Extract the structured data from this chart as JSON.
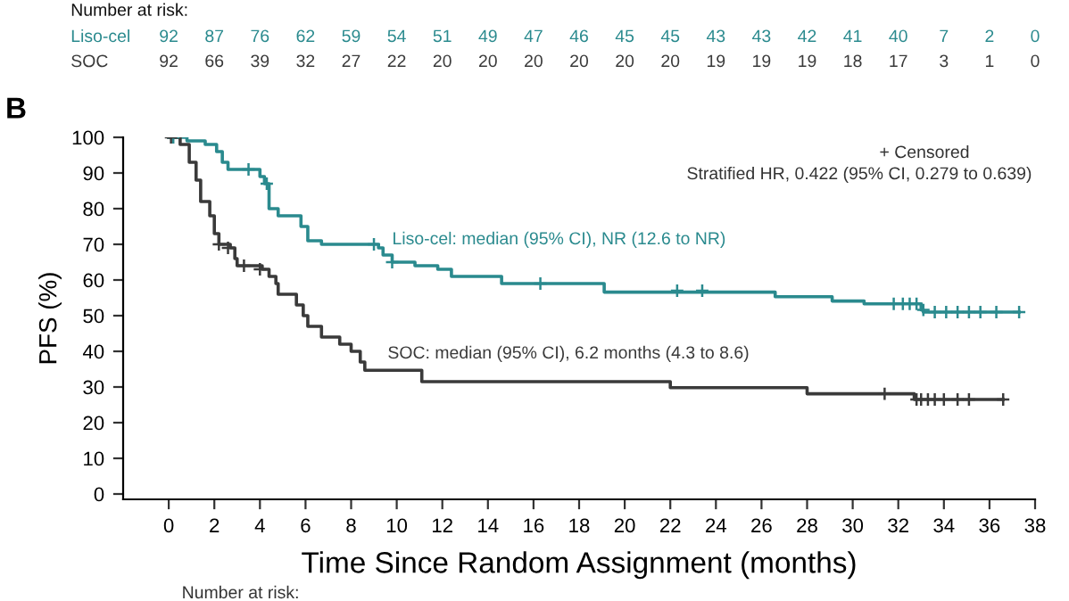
{
  "chart_data": [
    {
      "type": "heatmap",
      "title": "Number at risk:",
      "data_labels": true,
      "categories": [
        null,
        null,
        null,
        null,
        null,
        null,
        null,
        null,
        null,
        null,
        null,
        null,
        null,
        null,
        null,
        null,
        null,
        null,
        null,
        null
      ],
      "y_categories": [
        "Liso-cel",
        "SOC"
      ],
      "cells": [
        [
          92,
          87,
          76,
          62,
          59,
          54,
          51,
          49,
          47,
          46,
          45,
          45,
          43,
          43,
          42,
          41,
          40,
          7,
          2,
          0
        ],
        [
          92,
          66,
          39,
          32,
          27,
          22,
          20,
          20,
          20,
          20,
          20,
          20,
          19,
          19,
          19,
          18,
          17,
          3,
          1,
          0
        ]
      ]
    },
    {
      "type": "step",
      "title": "B",
      "xlabel": "Time Since Random Assignment (months)",
      "ylabel": "PFS (%)",
      "xlim": [
        -2,
        38
      ],
      "ylim": [
        -1.5,
        100
      ],
      "xticks": [
        0,
        2,
        4,
        6,
        8,
        10,
        12,
        14,
        16,
        18,
        20,
        22,
        24,
        26,
        28,
        30,
        32,
        34,
        36,
        38
      ],
      "yticks": [
        0,
        10,
        20,
        30,
        40,
        50,
        60,
        70,
        80,
        90,
        100
      ],
      "grid": false,
      "legend": false,
      "series": [
        {
          "color": "#2a8a8e",
          "marker": "none",
          "x": [
            0,
            0.8,
            1.6,
            2.1,
            2.35,
            2.6,
            4.0,
            4.2,
            4.4,
            4.8,
            5.8,
            6.1,
            6.7,
            9.2,
            9.4,
            9.8,
            10.8,
            11.8,
            12.4,
            14.6,
            15.5,
            19.1,
            26.6,
            29.1,
            30.5,
            33.0,
            33.1,
            37.3
          ],
          "values": [
            100,
            99,
            98,
            96,
            93,
            91,
            89,
            87,
            80,
            78,
            75,
            71,
            70,
            69,
            67,
            65,
            64,
            63,
            61,
            59,
            59,
            56.6,
            55.3,
            54.1,
            53.3,
            51.6,
            51,
            51
          ]
        },
        {
          "color": "#3a3a3a",
          "marker": "none",
          "x": [
            0,
            0.5,
            0.9,
            1.2,
            1.4,
            1.8,
            2.0,
            2.2,
            2.7,
            2.9,
            3.0,
            4.1,
            4.4,
            4.7,
            4.8,
            5.6,
            5.9,
            6.1,
            6.7,
            7.5,
            8.0,
            8.4,
            8.6,
            11.1,
            22.0,
            28.0,
            32.7,
            36.6
          ],
          "values": [
            100,
            98,
            93,
            88,
            82,
            78,
            73,
            70,
            69,
            66,
            64,
            63,
            61,
            59,
            56,
            53,
            50,
            47,
            44,
            42,
            40,
            37,
            34.7,
            31.5,
            29.8,
            28.1,
            26.5,
            26.5
          ]
        },
        {
          "type": "scatter",
          "color": "#2a8a8e",
          "marker": "cross",
          "x": [
            0.2,
            3.5,
            4.3,
            9.0,
            9.8,
            16.3,
            22.3,
            23.4,
            31.8,
            32.2,
            32.5,
            32.8,
            33.1,
            33.6,
            34.1,
            34.6,
            35.1,
            35.6,
            36.3,
            37.3
          ],
          "values": [
            100,
            91,
            87,
            70,
            65,
            59,
            57,
            57,
            53.3,
            53.3,
            53.3,
            53.3,
            51.6,
            51,
            51,
            51,
            51,
            51,
            51,
            51
          ]
        },
        {
          "type": "scatter",
          "color": "#3a3a3a",
          "marker": "cross",
          "x": [
            0.1,
            2.2,
            2.6,
            3.3,
            4.0,
            31.4,
            32.8,
            33.0,
            33.3,
            33.6,
            34.0,
            34.6,
            35.1,
            36.6
          ],
          "values": [
            100,
            70,
            69,
            64,
            63,
            28.1,
            26.5,
            26.5,
            26.5,
            26.5,
            26.5,
            26.5,
            26.5,
            26.5
          ]
        }
      ],
      "annotations": [
        {
          "text": "Liso-cel: median (95% CI), NR (12.6 to NR)",
          "x": 9.8,
          "y": 69
        },
        {
          "text": "SOC: median (95% CI), 6.2 months (4.3 to 8.6)",
          "x": 9.6,
          "y": 37
        },
        "+ Censored",
        "Stratified HR, 0.422 (95% CI, 0.279 to 0.639)",
        "Number at risk:"
      ]
    }
  ]
}
